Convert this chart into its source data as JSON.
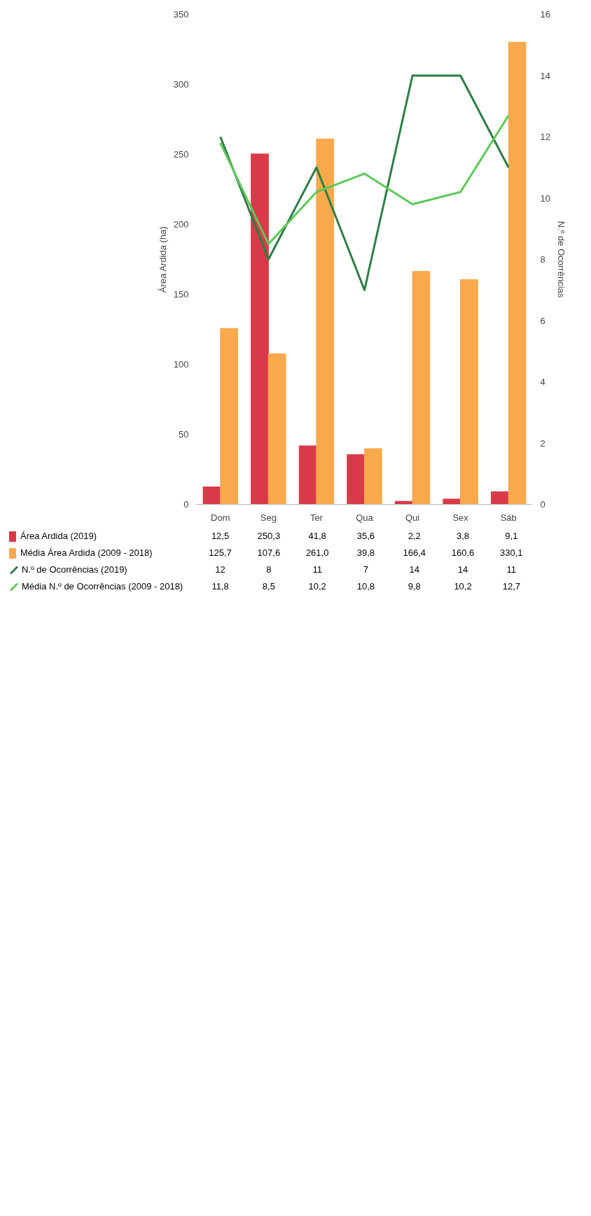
{
  "chart_data": {
    "type": "bar",
    "categories": [
      "Dom",
      "Seg",
      "Ter",
      "Qua",
      "Qui",
      "Sex",
      "Sáb"
    ],
    "ylabel": "Área Ardida (ha)",
    "y2label": "N.º de Ocorrências",
    "ylim": [
      0,
      350
    ],
    "yticks": [
      0,
      50,
      100,
      150,
      200,
      250,
      300,
      350
    ],
    "y2lim": [
      0,
      16
    ],
    "y2ticks": [
      0,
      2,
      4,
      6,
      8,
      10,
      12,
      14,
      16
    ],
    "grid": false,
    "legend": "bottom",
    "series": [
      {
        "name": "Área Ardida (2019)",
        "color": "#d93a49",
        "values": [
          12.5,
          250.3,
          41.8,
          35.6,
          2.2,
          3.8,
          9.1
        ],
        "value_labels": [
          "12,5",
          "250,3",
          "41,8",
          "35,6",
          "2,2",
          "3,8",
          "9,1"
        ]
      },
      {
        "name": "Média Área Ardida (2009 - 2018)",
        "color": "#f8a94c",
        "values": [
          125.7,
          107.6,
          261.0,
          39.8,
          166.4,
          160.6,
          330.1
        ],
        "value_labels": [
          "125,7",
          "107,6",
          "261,0",
          "39,8",
          "166,4",
          "160,6",
          "330,1"
        ]
      },
      {
        "name": "N.º de Ocorrências (2019)",
        "type": "line",
        "axis": "y2",
        "color": "#2e7d45",
        "values": [
          12,
          8,
          11,
          7,
          14,
          14,
          11
        ],
        "value_labels": [
          "12",
          "8",
          "11",
          "7",
          "14",
          "14",
          "11"
        ]
      },
      {
        "name": "Média N.º de Ocorrências (2009 - 2018)",
        "type": "line",
        "axis": "y2",
        "color": "#5ec95a",
        "values": [
          11.8,
          8.5,
          10.2,
          10.8,
          9.8,
          10.2,
          12.7
        ],
        "value_labels": [
          "11,8",
          "8,5",
          "10,2",
          "10,8",
          "9,8",
          "10,2",
          "12,7"
        ]
      }
    ]
  }
}
